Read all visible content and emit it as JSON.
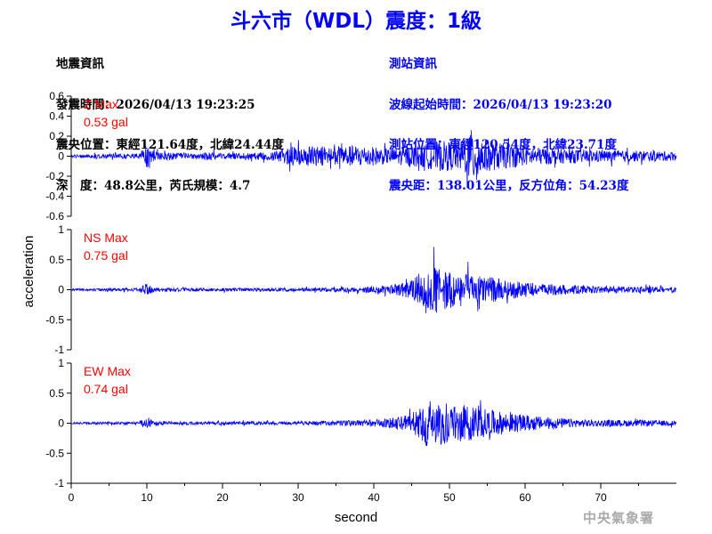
{
  "title": {
    "text": "斗六市（WDL）震度：1級"
  },
  "quake_info": {
    "heading": "地震資訊",
    "time": "發震時間：2026/04/13 19:23:25",
    "epicenter": "震央位置：東經121.64度，北緯24.44度",
    "depth": "深　度：48.8公里，芮氏規模：4.7"
  },
  "station_info": {
    "heading": "測站資訊",
    "wave_start": "波線起始時間：2026/04/13 19:23:20",
    "location": "測站位置：東經120.54度，北緯23.71度",
    "distance": "震央距：138.01公里，反方位角：54.23度"
  },
  "credit": "中央氣象署",
  "colors": {
    "title": "#0000ff",
    "station_info": "#0000ff",
    "trace": "#0000ff",
    "max_label": "#ff0000",
    "axis": "#000000"
  },
  "chart_data": {
    "type": "line",
    "xlabel": "second",
    "ylabel": "acceleration",
    "xlim": [
      0,
      80
    ],
    "x_ticks": [
      "0",
      "10",
      "20",
      "30",
      "40",
      "50",
      "60",
      "70"
    ],
    "panels": [
      {
        "name": "Z Max",
        "max_label": "0.53 gal",
        "ylim": [
          -0.6,
          0.6
        ],
        "y_ticks": [
          "0.6",
          "0.4",
          "0.2",
          "0",
          "-0.2",
          "-0.4",
          "-0.6"
        ],
        "envelope": [
          [
            0,
            0.03
          ],
          [
            9,
            0.05
          ],
          [
            10,
            0.22
          ],
          [
            11,
            0.08
          ],
          [
            17,
            0.05
          ],
          [
            18,
            0.08
          ],
          [
            20,
            0.05
          ],
          [
            26,
            0.07
          ],
          [
            29,
            0.17
          ],
          [
            31,
            0.19
          ],
          [
            35,
            0.17
          ],
          [
            38,
            0.2
          ],
          [
            42,
            0.14
          ],
          [
            46,
            0.2
          ],
          [
            49,
            0.28
          ],
          [
            51,
            0.25
          ],
          [
            52,
            0.31
          ],
          [
            53,
            0.5
          ],
          [
            55,
            0.28
          ],
          [
            60,
            0.17
          ],
          [
            66,
            0.13
          ],
          [
            72,
            0.1
          ],
          [
            76,
            0.1
          ],
          [
            80,
            0.08
          ]
        ]
      },
      {
        "name": "NS Max",
        "max_label": "0.75 gal",
        "ylim": [
          -1,
          1
        ],
        "y_ticks": [
          "1",
          "0.5",
          "0",
          "-0.5",
          "-1"
        ],
        "envelope": [
          [
            0,
            0.03
          ],
          [
            9,
            0.05
          ],
          [
            10,
            0.22
          ],
          [
            11,
            0.06
          ],
          [
            20,
            0.05
          ],
          [
            30,
            0.05
          ],
          [
            38,
            0.08
          ],
          [
            42,
            0.12
          ],
          [
            45,
            0.28
          ],
          [
            46,
            0.5
          ],
          [
            47,
            0.55
          ],
          [
            48,
            0.72
          ],
          [
            50,
            0.6
          ],
          [
            52,
            0.5
          ],
          [
            55,
            0.4
          ],
          [
            58,
            0.28
          ],
          [
            62,
            0.18
          ],
          [
            66,
            0.14
          ],
          [
            70,
            0.1
          ],
          [
            75,
            0.1
          ],
          [
            80,
            0.08
          ]
        ]
      },
      {
        "name": "EW Max",
        "max_label": "0.74 gal",
        "ylim": [
          -1,
          1
        ],
        "y_ticks": [
          "1",
          "0.5",
          "0",
          "-0.5",
          "-1"
        ],
        "envelope": [
          [
            0,
            0.03
          ],
          [
            9,
            0.05
          ],
          [
            10,
            0.2
          ],
          [
            11,
            0.06
          ],
          [
            20,
            0.05
          ],
          [
            30,
            0.05
          ],
          [
            38,
            0.09
          ],
          [
            42,
            0.14
          ],
          [
            45,
            0.32
          ],
          [
            46,
            0.5
          ],
          [
            47,
            0.75
          ],
          [
            48,
            0.68
          ],
          [
            50,
            0.62
          ],
          [
            52,
            0.55
          ],
          [
            55,
            0.42
          ],
          [
            58,
            0.3
          ],
          [
            62,
            0.2
          ],
          [
            66,
            0.13
          ],
          [
            70,
            0.1
          ],
          [
            75,
            0.1
          ],
          [
            80,
            0.07
          ]
        ]
      }
    ]
  }
}
